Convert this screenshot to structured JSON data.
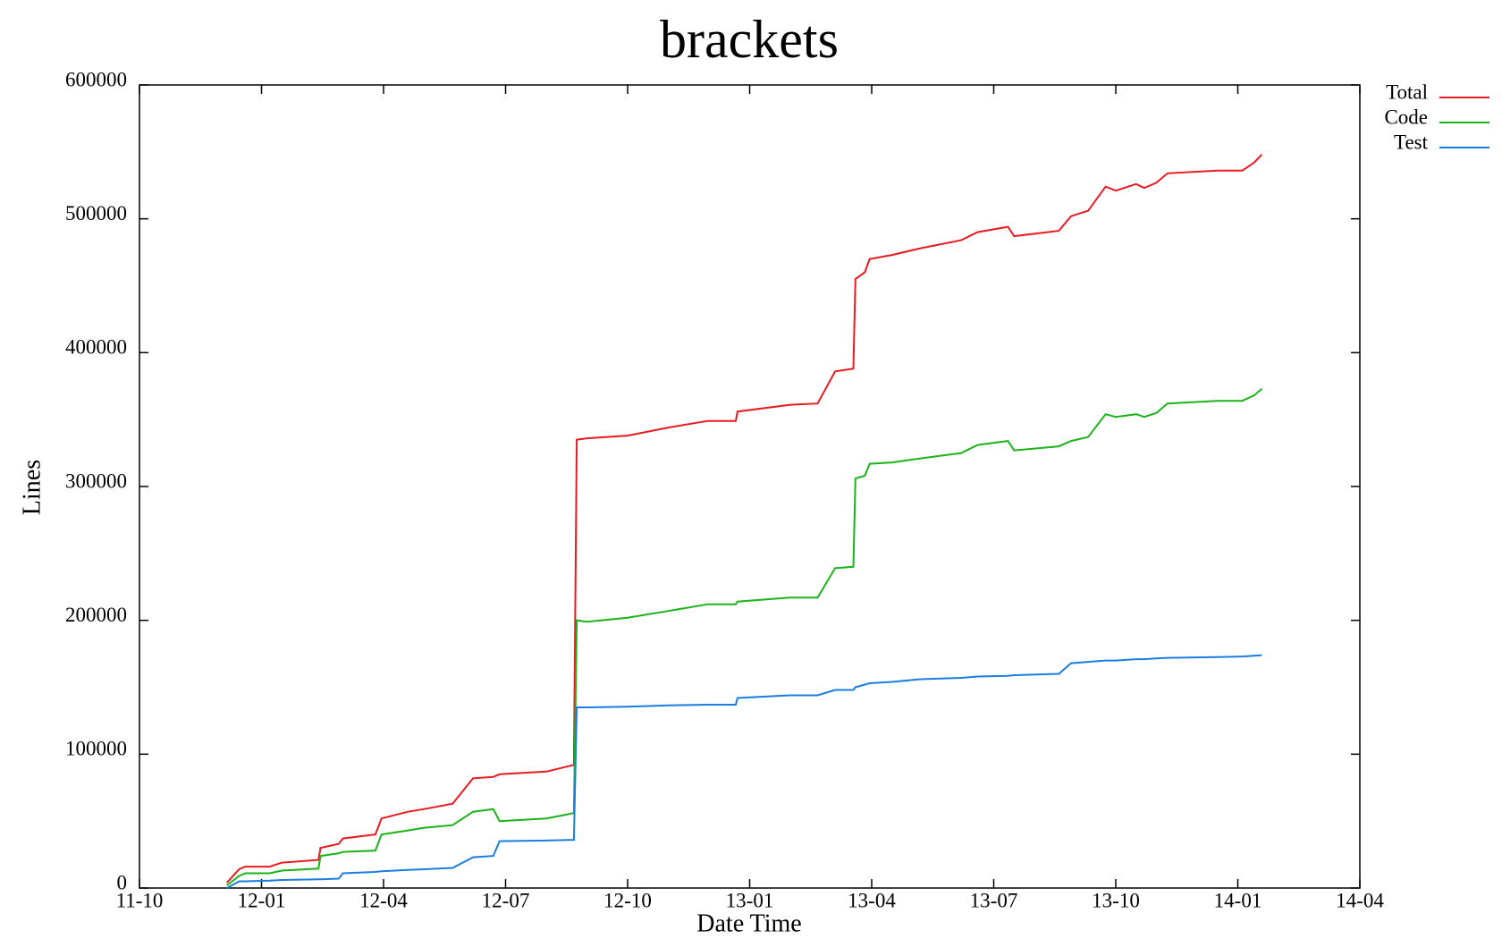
{
  "chart_data": {
    "type": "line",
    "title": "brackets",
    "xlabel": "Date Time",
    "ylabel": "Lines",
    "xlim": [
      0,
      30
    ],
    "xticks": [
      {
        "value": 0,
        "label": "11-10"
      },
      {
        "value": 3,
        "label": "12-01"
      },
      {
        "value": 6,
        "label": "12-04"
      },
      {
        "value": 9,
        "label": "12-07"
      },
      {
        "value": 12,
        "label": "12-10"
      },
      {
        "value": 15,
        "label": "13-01"
      },
      {
        "value": 18,
        "label": "13-04"
      },
      {
        "value": 21,
        "label": "13-07"
      },
      {
        "value": 24,
        "label": "13-10"
      },
      {
        "value": 27,
        "label": "14-01"
      },
      {
        "value": 30,
        "label": "14-04"
      }
    ],
    "ylim": [
      0,
      600000
    ],
    "yticks": [
      0,
      100000,
      200000,
      300000,
      400000,
      500000,
      600000
    ],
    "legend": "outside-top-right",
    "x": [
      2.15,
      2.45,
      2.6,
      3.2,
      3.5,
      4.4,
      4.45,
      4.9,
      5.0,
      5.8,
      5.95,
      6.6,
      7.0,
      7.7,
      8.2,
      8.7,
      8.85,
      10.0,
      10.68,
      10.75,
      11.0,
      12.0,
      13.0,
      13.97,
      14.66,
      14.7,
      15.98,
      16.67,
      17.1,
      17.55,
      17.6,
      17.83,
      17.95,
      18.5,
      19.2,
      20.2,
      20.6,
      21.35,
      21.5,
      22.6,
      22.9,
      23.32,
      23.75,
      24.0,
      24.5,
      24.7,
      25.0,
      25.27,
      26.5,
      27.11,
      27.4,
      27.59
    ],
    "series": [
      {
        "name": "Total",
        "color": "#e8191f",
        "values": [
          4000,
          14000,
          16000,
          16000,
          19000,
          21000,
          30000,
          33000,
          37000,
          40000,
          52000,
          57000,
          59000,
          63000,
          82000,
          83000,
          85000,
          87000,
          92000,
          335000,
          336000,
          338000,
          344000,
          349000,
          349000,
          356000,
          361000,
          362000,
          386000,
          388000,
          455000,
          460000,
          470000,
          473000,
          478000,
          484000,
          490000,
          494000,
          487000,
          491000,
          502000,
          506000,
          524000,
          521000,
          526000,
          523000,
          527000,
          534000,
          536000,
          536000,
          542000,
          548000
        ]
      },
      {
        "name": "Code",
        "color": "#1ab31a",
        "values": [
          2000,
          9000,
          11000,
          11000,
          13000,
          14500,
          24000,
          26000,
          27000,
          28000,
          40000,
          43000,
          45000,
          47000,
          57000,
          59000,
          50000,
          52000,
          56000,
          200000,
          199000,
          202000,
          207000,
          212000,
          212000,
          214000,
          217000,
          217000,
          239000,
          240000,
          306000,
          308000,
          317000,
          318000,
          321000,
          325000,
          331000,
          334000,
          327000,
          330000,
          334000,
          337000,
          354000,
          352000,
          354000,
          352000,
          355000,
          362000,
          364000,
          364000,
          368000,
          373000
        ]
      },
      {
        "name": "Test",
        "color": "#1a7de0",
        "values": [
          0,
          5000,
          5000,
          5500,
          6000,
          6500,
          6500,
          7000,
          11000,
          12000,
          12500,
          13500,
          14000,
          15000,
          23000,
          24000,
          35000,
          35500,
          36000,
          135000,
          135000,
          135500,
          136500,
          137000,
          137000,
          142000,
          144000,
          144000,
          148000,
          148000,
          150000,
          152000,
          153000,
          154000,
          156000,
          157000,
          158000,
          158500,
          159000,
          160000,
          168000,
          169000,
          170000,
          170000,
          171000,
          171000,
          171500,
          172000,
          172500,
          173000,
          173500,
          174000
        ]
      }
    ]
  }
}
